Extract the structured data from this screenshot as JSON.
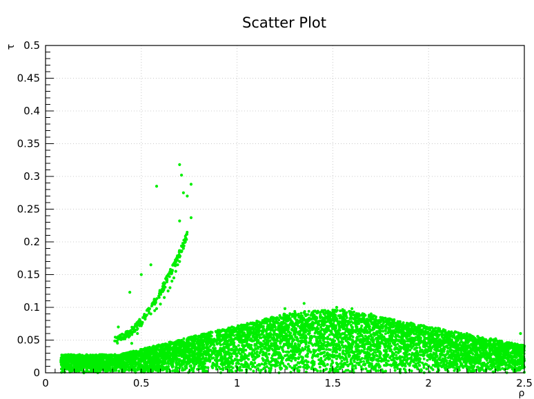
{
  "chart_data": {
    "type": "scatter",
    "title": "Scatter Plot",
    "xlabel": "ρ",
    "ylabel": "τ",
    "xlim": [
      0,
      2.5
    ],
    "ylim": [
      0,
      0.5
    ],
    "x_ticks": [
      "0",
      "0.5",
      "1",
      "1.5",
      "2",
      "2.5"
    ],
    "y_ticks": [
      "0",
      "0.05",
      "0.1",
      "0.15",
      "0.2",
      "0.25",
      "0.3",
      "0.35",
      "0.4",
      "0.45",
      "0.5"
    ],
    "grid": true,
    "marker_color": "#00ee00",
    "series": [
      {
        "points": [
          [
            0.1,
            0.001
          ],
          [
            0.15,
            0.004
          ],
          [
            0.2,
            0.008
          ],
          [
            0.25,
            0.012
          ],
          [
            0.3,
            0.016
          ],
          [
            0.35,
            0.02
          ],
          [
            0.4,
            0.024
          ],
          [
            0.45,
            0.028
          ],
          [
            0.5,
            0.032
          ],
          [
            0.55,
            0.036
          ],
          [
            0.6,
            0.04
          ],
          [
            0.65,
            0.044
          ],
          [
            0.7,
            0.048
          ],
          [
            0.75,
            0.052
          ],
          [
            0.8,
            0.056
          ],
          [
            0.85,
            0.06
          ],
          [
            0.9,
            0.063
          ],
          [
            0.95,
            0.066
          ],
          [
            1.0,
            0.069
          ],
          [
            1.05,
            0.072
          ],
          [
            1.1,
            0.075
          ],
          [
            1.15,
            0.079
          ],
          [
            1.2,
            0.083
          ],
          [
            1.25,
            0.087
          ],
          [
            1.3,
            0.09
          ],
          [
            1.35,
            0.092
          ],
          [
            1.4,
            0.094
          ],
          [
            1.45,
            0.095
          ],
          [
            1.5,
            0.096
          ],
          [
            1.55,
            0.095
          ],
          [
            1.6,
            0.092
          ],
          [
            1.65,
            0.088
          ],
          [
            1.7,
            0.083
          ],
          [
            1.75,
            0.078
          ],
          [
            1.8,
            0.074
          ],
          [
            1.85,
            0.07
          ],
          [
            1.9,
            0.066
          ],
          [
            1.95,
            0.062
          ],
          [
            2.0,
            0.058
          ],
          [
            2.05,
            0.055
          ],
          [
            2.1,
            0.052
          ],
          [
            2.15,
            0.049
          ],
          [
            2.2,
            0.047
          ],
          [
            2.25,
            0.046
          ],
          [
            2.3,
            0.045
          ],
          [
            2.35,
            0.044
          ],
          [
            2.4,
            0.043
          ],
          [
            2.45,
            0.042
          ],
          [
            2.5,
            0.041
          ],
          [
            0.35,
            0.008
          ],
          [
            0.45,
            0.015
          ],
          [
            0.55,
            0.02
          ],
          [
            0.65,
            0.025
          ],
          [
            0.75,
            0.03
          ],
          [
            0.85,
            0.035
          ],
          [
            0.95,
            0.04
          ],
          [
            1.05,
            0.043
          ],
          [
            1.15,
            0.046
          ],
          [
            1.25,
            0.05
          ],
          [
            1.35,
            0.055
          ],
          [
            1.45,
            0.058
          ],
          [
            1.55,
            0.06
          ],
          [
            1.65,
            0.058
          ],
          [
            1.75,
            0.053
          ],
          [
            1.85,
            0.048
          ],
          [
            1.95,
            0.043
          ],
          [
            2.05,
            0.039
          ],
          [
            2.15,
            0.035
          ],
          [
            2.25,
            0.032
          ],
          [
            2.35,
            0.03
          ],
          [
            2.45,
            0.029
          ],
          [
            0.25,
            0.004
          ],
          [
            0.5,
            0.01
          ],
          [
            0.75,
            0.015
          ],
          [
            1.0,
            0.02
          ],
          [
            1.25,
            0.026
          ],
          [
            1.5,
            0.032
          ],
          [
            1.75,
            0.03
          ],
          [
            2.0,
            0.026
          ],
          [
            2.25,
            0.022
          ],
          [
            2.45,
            0.018
          ],
          [
            0.2,
            0.0
          ],
          [
            0.4,
            0.002
          ],
          [
            0.6,
            0.004
          ],
          [
            0.8,
            0.006
          ],
          [
            1.0,
            0.008
          ],
          [
            1.2,
            0.01
          ],
          [
            1.4,
            0.012
          ],
          [
            1.6,
            0.014
          ],
          [
            1.8,
            0.012
          ],
          [
            2.0,
            0.01
          ],
          [
            2.2,
            0.008
          ],
          [
            2.4,
            0.006
          ],
          [
            0.38,
            0.07
          ],
          [
            0.45,
            0.045
          ],
          [
            0.48,
            0.06
          ],
          [
            0.5,
            0.072
          ],
          [
            0.52,
            0.082
          ],
          [
            0.55,
            0.09
          ],
          [
            0.57,
            0.095
          ],
          [
            0.58,
            0.098
          ],
          [
            0.6,
            0.105
          ],
          [
            0.62,
            0.115
          ],
          [
            0.64,
            0.125
          ],
          [
            0.66,
            0.14
          ],
          [
            0.68,
            0.155
          ],
          [
            0.7,
            0.17
          ],
          [
            0.72,
            0.19
          ],
          [
            0.73,
            0.205
          ],
          [
            0.44,
            0.123
          ],
          [
            0.5,
            0.15
          ],
          [
            0.55,
            0.165
          ],
          [
            0.58,
            0.285
          ],
          [
            0.7,
            0.318
          ],
          [
            0.71,
            0.302
          ],
          [
            0.72,
            0.275
          ],
          [
            0.74,
            0.27
          ],
          [
            0.76,
            0.288
          ],
          [
            0.76,
            0.237
          ],
          [
            0.7,
            0.232
          ],
          [
            0.73,
            0.2
          ],
          [
            0.71,
            0.185
          ],
          [
            0.69,
            0.165
          ],
          [
            0.67,
            0.145
          ],
          [
            0.65,
            0.13
          ],
          [
            1.25,
            0.098
          ],
          [
            1.35,
            0.106
          ],
          [
            1.52,
            0.1
          ],
          [
            1.6,
            0.098
          ],
          [
            1.7,
            0.09
          ],
          [
            1.8,
            0.082
          ],
          [
            1.95,
            0.072
          ],
          [
            2.05,
            0.068
          ],
          [
            2.2,
            0.06
          ],
          [
            2.35,
            0.052
          ],
          [
            2.48,
            0.06
          ]
        ]
      }
    ]
  }
}
